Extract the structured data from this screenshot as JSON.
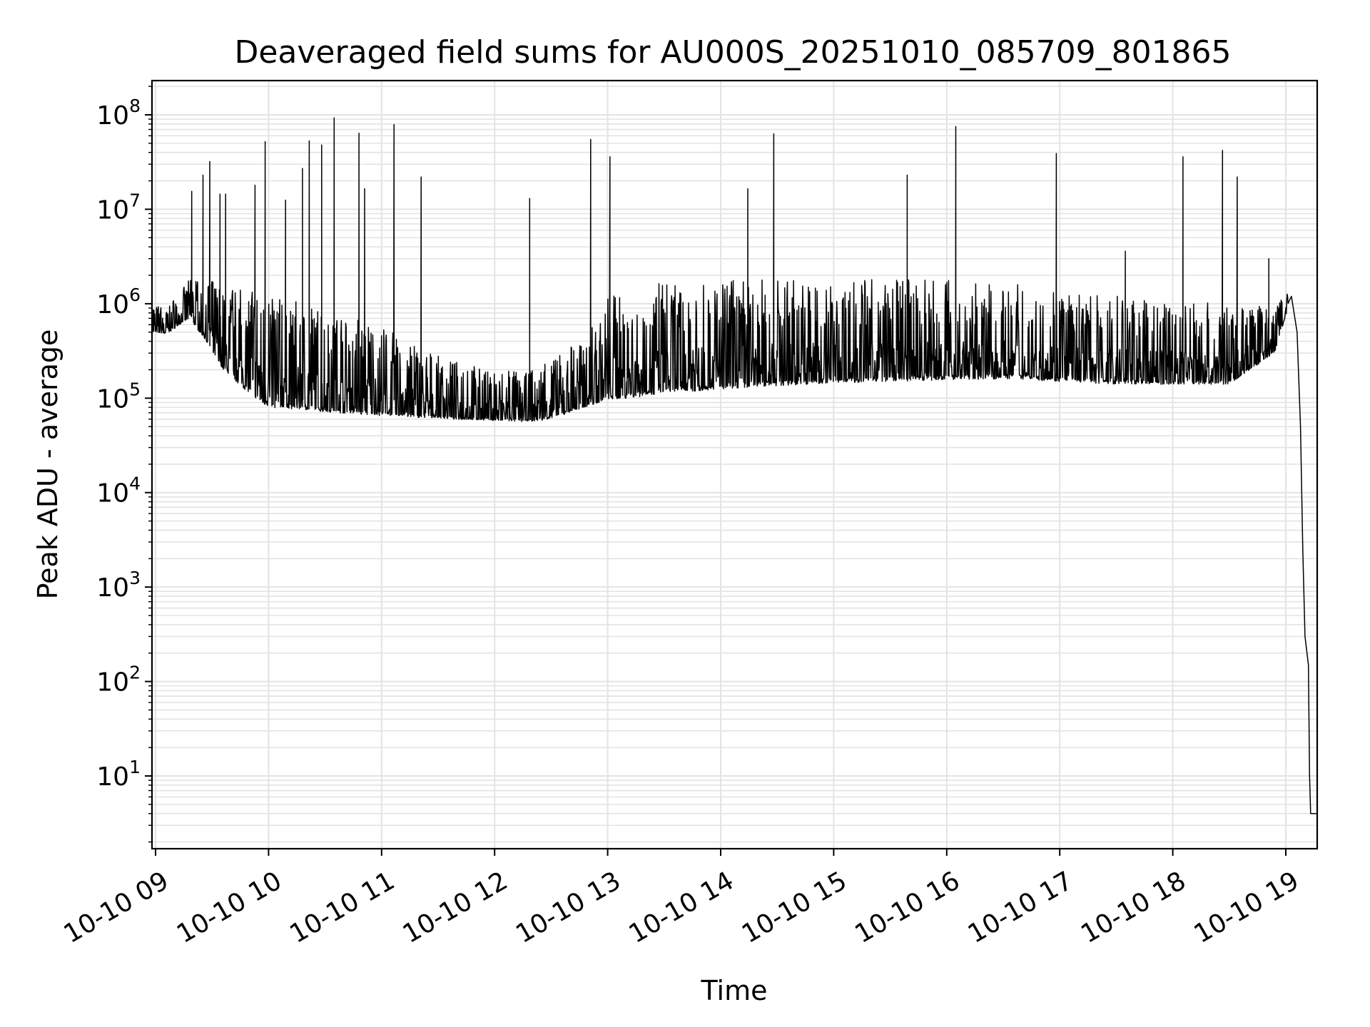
{
  "chart_data": {
    "type": "line",
    "title": "Deaveraged field sums for AU000S_20251010_085709_801865",
    "xlabel": "Time",
    "ylabel": "Peak ADU - average",
    "yscale": "log",
    "ylim": [
      1.6,
      220000000
    ],
    "xlim_hours": [
      8.97,
      19.27
    ],
    "grid": true,
    "x_ticks": [
      {
        "hour": 9,
        "label": "10-10 09"
      },
      {
        "hour": 10,
        "label": "10-10 10"
      },
      {
        "hour": 11,
        "label": "10-10 11"
      },
      {
        "hour": 12,
        "label": "10-10 12"
      },
      {
        "hour": 13,
        "label": "10-10 13"
      },
      {
        "hour": 14,
        "label": "10-10 14"
      },
      {
        "hour": 15,
        "label": "10-10 15"
      },
      {
        "hour": 16,
        "label": "10-10 16"
      },
      {
        "hour": 17,
        "label": "10-10 17"
      },
      {
        "hour": 18,
        "label": "10-10 18"
      },
      {
        "hour": 19,
        "label": "10-10 19"
      }
    ],
    "y_ticks": [
      {
        "value": 10,
        "base": "10",
        "exp": "1"
      },
      {
        "value": 100,
        "base": "10",
        "exp": "2"
      },
      {
        "value": 1000,
        "base": "10",
        "exp": "3"
      },
      {
        "value": 10000,
        "base": "10",
        "exp": "4"
      },
      {
        "value": 100000,
        "base": "10",
        "exp": "5"
      },
      {
        "value": 1000000,
        "base": "10",
        "exp": "6"
      },
      {
        "value": 10000000,
        "base": "10",
        "exp": "7"
      },
      {
        "value": 100000000,
        "base": "10",
        "exp": "8"
      }
    ],
    "series": [
      {
        "name": "Peak ADU - average",
        "color": "#000000",
        "baseline_hours": [
          8.97,
          9.1,
          9.3,
          9.45,
          9.6,
          9.8,
          10.0,
          10.3,
          10.6,
          11.0,
          11.3,
          11.6,
          12.0,
          12.3,
          12.5,
          12.8,
          13.0,
          13.5,
          14.0,
          14.5,
          15.0,
          15.5,
          16.0,
          16.5,
          17.0,
          17.5,
          18.0,
          18.5,
          18.9,
          19.02
        ],
        "baseline_low": [
          500000,
          480000,
          700000,
          400000,
          200000,
          120000,
          80000,
          75000,
          70000,
          65000,
          62000,
          60000,
          58000,
          56000,
          60000,
          80000,
          95000,
          110000,
          125000,
          135000,
          145000,
          150000,
          155000,
          160000,
          150000,
          140000,
          140000,
          140000,
          300000,
          900000
        ],
        "baseline_high": [
          1000000,
          900000,
          1800000,
          1800000,
          1600000,
          1400000,
          1300000,
          1000000,
          800000,
          600000,
          350000,
          250000,
          200000,
          200000,
          250000,
          500000,
          1200000,
          1700000,
          1800000,
          1800000,
          1800000,
          1800000,
          1800000,
          1700000,
          1300000,
          1200000,
          1100000,
          1000000,
          1000000,
          1300000
        ],
        "spikes": [
          {
            "hour": 9.32,
            "value": 15500000
          },
          {
            "hour": 9.42,
            "value": 23000000
          },
          {
            "hour": 9.48,
            "value": 32000000
          },
          {
            "hour": 9.57,
            "value": 14500000
          },
          {
            "hour": 9.62,
            "value": 14500000
          },
          {
            "hour": 9.88,
            "value": 18000000
          },
          {
            "hour": 9.97,
            "value": 52000000
          },
          {
            "hour": 10.15,
            "value": 12500000
          },
          {
            "hour": 10.3,
            "value": 27000000
          },
          {
            "hour": 10.36,
            "value": 53000000
          },
          {
            "hour": 10.47,
            "value": 48000000
          },
          {
            "hour": 10.58,
            "value": 93000000
          },
          {
            "hour": 10.8,
            "value": 64000000
          },
          {
            "hour": 10.85,
            "value": 16500000
          },
          {
            "hour": 11.11,
            "value": 79000000
          },
          {
            "hour": 11.35,
            "value": 22000000
          },
          {
            "hour": 12.31,
            "value": 13000000
          },
          {
            "hour": 12.85,
            "value": 55000000
          },
          {
            "hour": 13.02,
            "value": 36000000
          },
          {
            "hour": 14.24,
            "value": 16500000
          },
          {
            "hour": 14.47,
            "value": 63000000
          },
          {
            "hour": 15.65,
            "value": 23000000
          },
          {
            "hour": 16.08,
            "value": 75000000
          },
          {
            "hour": 16.97,
            "value": 39000000
          },
          {
            "hour": 17.58,
            "value": 3600000
          },
          {
            "hour": 18.09,
            "value": 36000000
          },
          {
            "hour": 18.44,
            "value": 42000000
          },
          {
            "hour": 18.57,
            "value": 22000000
          },
          {
            "hour": 18.85,
            "value": 3000000
          }
        ],
        "tail": [
          {
            "hour": 19.05,
            "value": 1200000
          },
          {
            "hour": 19.1,
            "value": 500000
          },
          {
            "hour": 19.13,
            "value": 50000
          },
          {
            "hour": 19.15,
            "value": 2500
          },
          {
            "hour": 19.17,
            "value": 300
          },
          {
            "hour": 19.2,
            "value": 150
          },
          {
            "hour": 19.21,
            "value": 10
          },
          {
            "hour": 19.22,
            "value": 4
          },
          {
            "hour": 19.27,
            "value": 4
          }
        ]
      }
    ]
  }
}
